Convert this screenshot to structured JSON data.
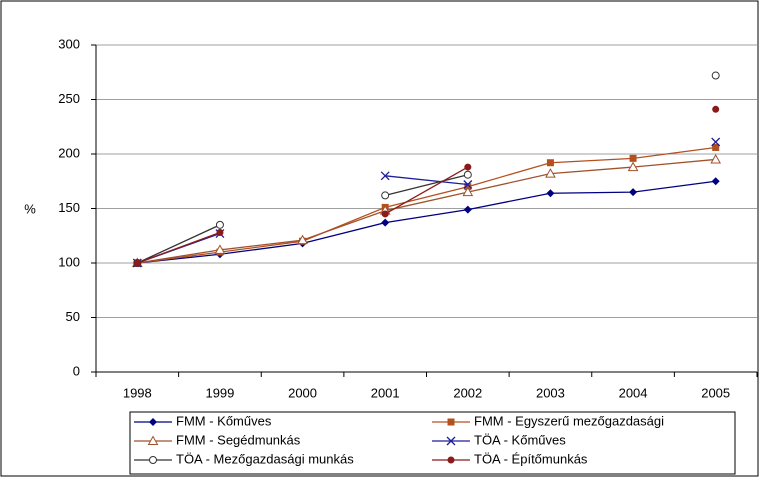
{
  "chart_data": {
    "type": "line",
    "y_label": "%",
    "categories": [
      "1998",
      "1999",
      "2000",
      "2001",
      "2002",
      "2003",
      "2004",
      "2005"
    ],
    "ylim": [
      0,
      300
    ],
    "yticks": [
      0,
      50,
      100,
      150,
      200,
      250,
      300
    ],
    "grid": true,
    "series": [
      {
        "name": "FMM - Kőműves",
        "color": "#000080",
        "marker": "diamond",
        "values": [
          100,
          108,
          118,
          137,
          149,
          164,
          165,
          175
        ]
      },
      {
        "name": "FMM - Egyszerű mezőgazdasági",
        "color": "#b4501e",
        "marker": "square",
        "values": [
          100,
          110,
          120,
          151,
          170,
          192,
          196,
          206
        ]
      },
      {
        "name": "FMM - Segédmunkás",
        "color": "#a0522d",
        "marker": "triangle",
        "values": [
          100,
          112,
          121,
          148,
          165,
          182,
          188,
          195
        ]
      },
      {
        "name": "TÖA - Kőműves",
        "color": "#1f1f99",
        "marker": "x",
        "values": [
          100,
          127,
          null,
          180,
          172,
          null,
          null,
          211
        ]
      },
      {
        "name": "TÖA - Mezőgazdasági munkás",
        "color": "#333333",
        "marker": "circle-open",
        "values": [
          100,
          135,
          null,
          162,
          181,
          null,
          null,
          272
        ]
      },
      {
        "name": "TÖA - Építőmunkás",
        "color": "#8b1a1a",
        "marker": "circle",
        "values": [
          100,
          128,
          null,
          145,
          188,
          null,
          null,
          241
        ]
      }
    ]
  }
}
